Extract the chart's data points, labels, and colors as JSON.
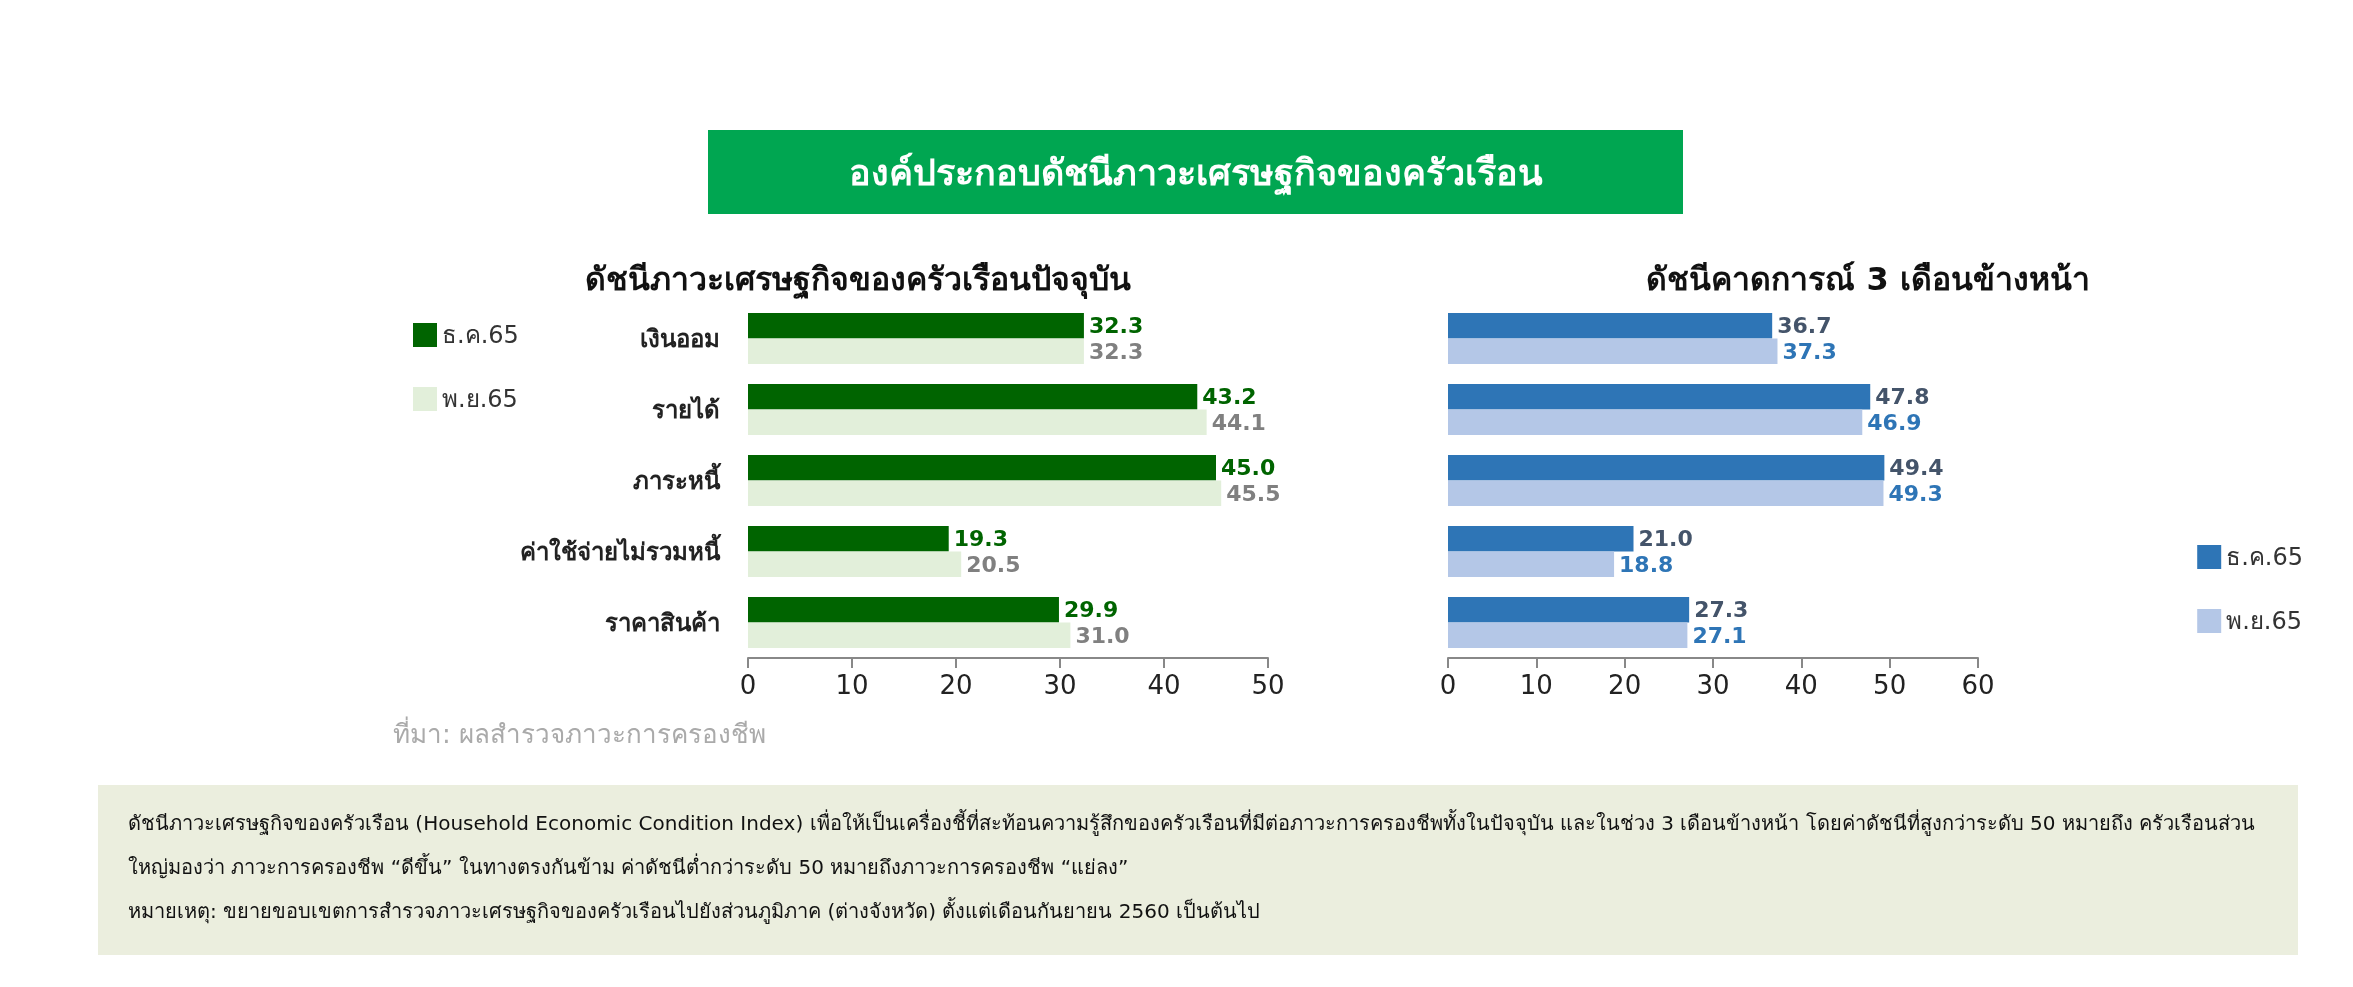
{
  "chart_data": [
    {
      "type": "other",
      "title": "องค์ประกอบดัชนีภาวะเศรษฐกิจของครัวเรือน",
      "annotations": [
        "ดัชนีภาวะเศรษฐกิจของครัวเรือน (Household Economic Condition Index) เพื่อให้เป็นเครื่องชี้ที่สะท้อนความรู้สึกของครัวเรือนที่มีต่อภาวะการครองชีพทั้งในปัจจุบัน และในช่วง 3 เดือนข้างหน้า โดยค่าดัชนีที่สูงกว่าระดับ 50 หมายถึง ครัวเรือนส่วนใหญ่มองว่า ภาวะการครองชีพ “ดีขึ้น” ในทางตรงกันข้าม ค่าดัชนีต่ำกว่าระดับ 50  หมายถึงภาวะการครองชีพ “แย่ลง”",
        "หมายเหตุ: ขยายขอบเขตการสำรวจภาวะเศรษฐกิจของครัวเรือนไปยังส่วนภูมิภาค (ต่างจังหวัด) ตั้งแต่เดือนกันยายน 2560 เป็นต้นไป"
      ]
    },
    {
      "type": "bar",
      "orientation": "horizontal",
      "title": "ดัชนีภาวะเศรษฐกิจของครัวเรือนปัจจุบัน",
      "categories": [
        "เงินออม",
        "รายได้",
        "ภาระหนี้",
        "ค่าใช้จ่ายไม่รวมหนี้",
        "ราคาสินค้า"
      ],
      "series": [
        {
          "name": "ธ.ค.65",
          "color": "#006400",
          "values": [
            32.3,
            43.2,
            45.0,
            19.3,
            29.9
          ],
          "value_labels": [
            "32.3",
            "43.2",
            "45.0",
            "19.3",
            "29.9"
          ]
        },
        {
          "name": "พ.ย.65",
          "color": "#e2efda",
          "values": [
            32.3,
            44.1,
            45.5,
            20.5,
            31.0
          ],
          "value_labels": [
            "32.3",
            "44.1",
            "45.5",
            "20.5",
            "31.0"
          ]
        }
      ],
      "xlim": [
        0,
        50
      ],
      "xticks": [
        0,
        10,
        20,
        30,
        40,
        50
      ],
      "grid": false,
      "legend": "left",
      "annotations": [
        "ที่มา: ผลสำรวจภาวะการครองชีพ"
      ]
    },
    {
      "type": "bar",
      "orientation": "horizontal",
      "title": "ดัชนีคาดการณ์ 3 เดือนข้างหน้า",
      "categories": [
        null,
        null,
        null,
        null,
        null
      ],
      "series": [
        {
          "name": "ธ.ค.65",
          "color": "#2e75b6",
          "values": [
            36.7,
            47.8,
            49.4,
            21.0,
            27.3
          ],
          "value_labels": [
            "36.7",
            "47.8",
            "49.4",
            "21.0",
            "27.3"
          ]
        },
        {
          "name": "พ.ย.65",
          "color": "#b4c7e7",
          "values": [
            37.3,
            46.9,
            49.3,
            18.8,
            27.1
          ],
          "value_labels": [
            "37.3",
            "46.9",
            "49.3",
            "18.8",
            "27.1"
          ]
        }
      ],
      "xlim": [
        0,
        60
      ],
      "xticks": [
        0,
        10,
        20,
        30,
        40,
        50,
        60
      ],
      "grid": false,
      "legend": "bottom right"
    }
  ]
}
